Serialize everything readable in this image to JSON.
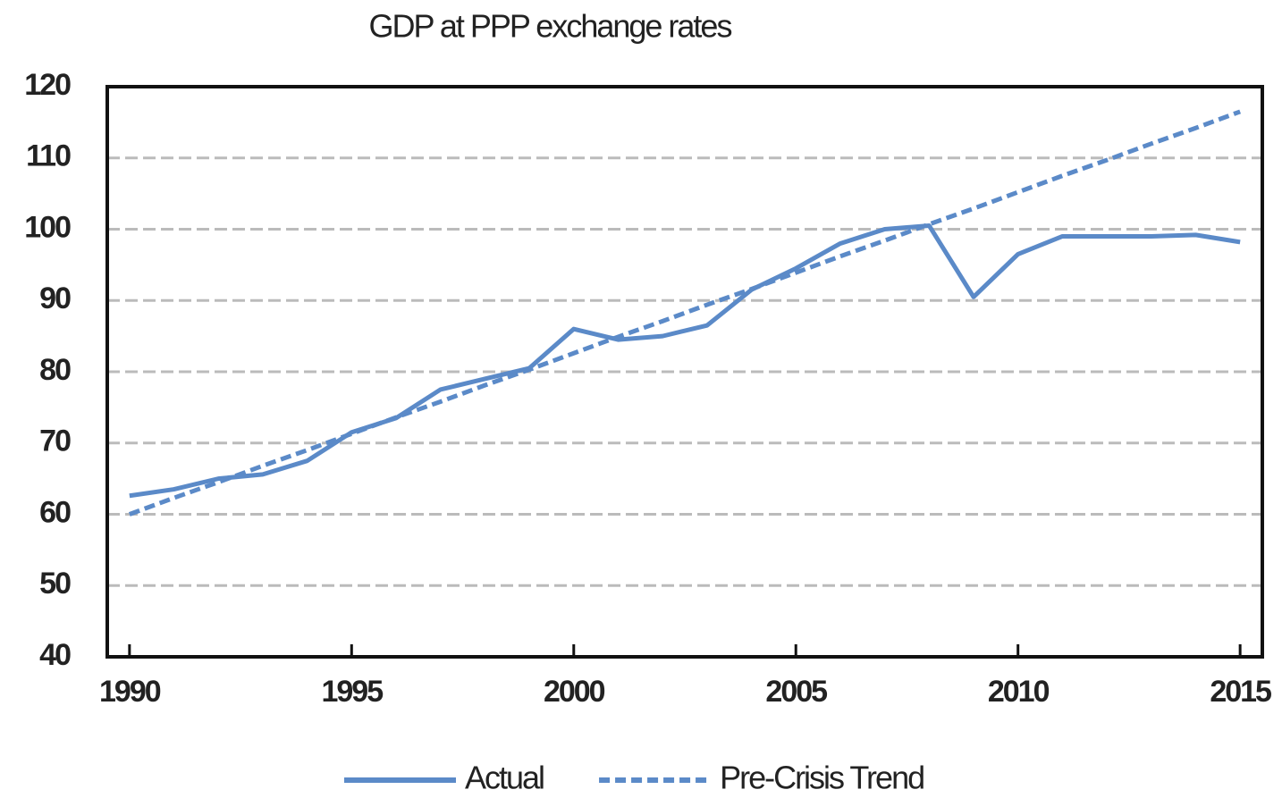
{
  "chart_data": {
    "type": "line",
    "title": "GDP at PPP exchange rates",
    "x": [
      1990,
      1991,
      1992,
      1993,
      1994,
      1995,
      1996,
      1997,
      1998,
      1999,
      2000,
      2001,
      2002,
      2003,
      2004,
      2005,
      2006,
      2007,
      2008,
      2009,
      2010,
      2011,
      2012,
      2013,
      2014,
      2015
    ],
    "series": [
      {
        "name": "Actual",
        "color": "#5b8ac8",
        "dash": false,
        "values": [
          62.6,
          63.5,
          65,
          65.6,
          67.5,
          71.5,
          73.5,
          77.5,
          79,
          80.5,
          86,
          84.5,
          85,
          86.5,
          91.5,
          94.5,
          98,
          100,
          100.5,
          90.5,
          96.5,
          99,
          99,
          99,
          99.2,
          98.2
        ]
      },
      {
        "name": "Pre-Crisis Trend",
        "color": "#5b8ac8",
        "dash": true,
        "values": [
          60,
          62.3,
          64.5,
          66.8,
          69,
          71.3,
          73.6,
          75.8,
          78.1,
          80.3,
          82.6,
          84.9,
          87.1,
          89.4,
          91.6,
          93.9,
          96.2,
          98.4,
          100.7,
          102.9,
          105.2,
          107.5,
          109.7,
          112,
          114.2,
          116.5
        ]
      }
    ],
    "xlim": [
      1989.5,
      2015.5
    ],
    "xticks": [
      1990,
      1995,
      2000,
      2005,
      2010,
      2015
    ],
    "ylim": [
      40,
      120
    ],
    "yticks": [
      40,
      50,
      60,
      70,
      80,
      90,
      100,
      110,
      120
    ],
    "grid": true,
    "legend": "bottom"
  }
}
